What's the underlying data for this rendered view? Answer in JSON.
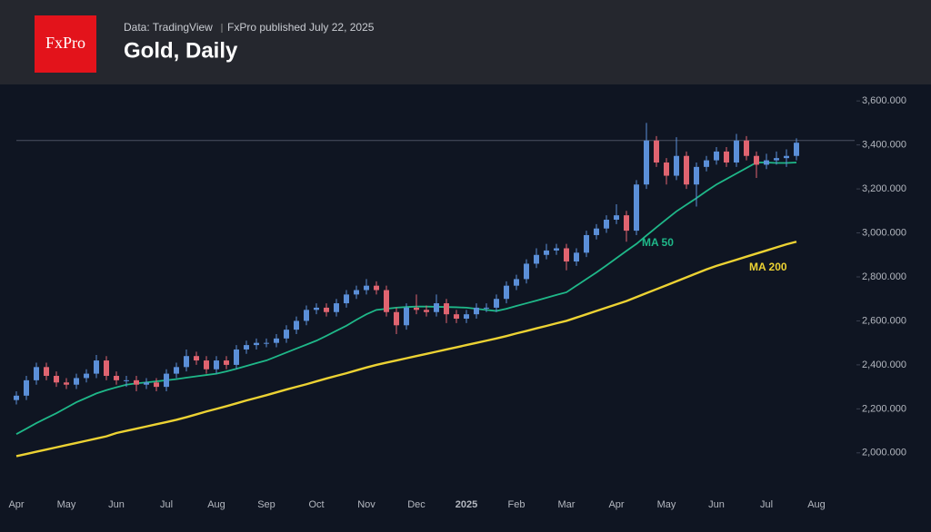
{
  "header": {
    "logo": "FxPro",
    "source": "Data: TradingView",
    "published": "FxPro published July 22, 2025",
    "title": "Gold, Daily"
  },
  "chart_data": {
    "type": "candlestick",
    "categories": [
      "Apr",
      null,
      null,
      null,
      null,
      "May",
      null,
      null,
      null,
      null,
      "Jun",
      null,
      null,
      null,
      null,
      "Jul",
      null,
      null,
      null,
      null,
      "Aug",
      null,
      null,
      null,
      null,
      "Sep",
      null,
      null,
      null,
      null,
      "Oct",
      null,
      null,
      null,
      null,
      "Nov",
      null,
      null,
      null,
      null,
      "Dec",
      null,
      null,
      null,
      null,
      "2025",
      null,
      null,
      null,
      null,
      "Feb",
      null,
      null,
      null,
      null,
      "Mar",
      null,
      null,
      null,
      null,
      "Apr",
      null,
      null,
      null,
      null,
      "May",
      null,
      null,
      null,
      null,
      "Jun",
      null,
      null,
      null,
      null,
      "Jul",
      null,
      null,
      null,
      null,
      "Aug"
    ],
    "open": [
      2240,
      2260,
      2330,
      2390,
      2350,
      2320,
      2310,
      2340,
      2360,
      2420,
      2350,
      2330,
      2330,
      2310,
      2320,
      2300,
      2360,
      2390,
      2440,
      2420,
      2380,
      2420,
      2400,
      2470,
      2490,
      2500,
      2500,
      2520,
      2560,
      2600,
      2650,
      2660,
      2640,
      2680,
      2720,
      2740,
      2760,
      2740,
      2640,
      2580,
      2660,
      2650,
      2640,
      2680,
      2630,
      2610,
      2630,
      2660,
      2660,
      2700,
      2760,
      2790,
      2860,
      2900,
      2920,
      2930,
      2870,
      2910,
      2990,
      3020,
      3060,
      3080,
      3010,
      3220,
      3420,
      3320,
      3260,
      3350,
      3220,
      3300,
      3330,
      3370,
      3320,
      3420,
      3350,
      3310,
      3330,
      3340,
      3350,
      null,
      null
    ],
    "high": [
      2280,
      2350,
      2410,
      2410,
      2370,
      2340,
      2360,
      2380,
      2445,
      2440,
      2370,
      2350,
      2350,
      2340,
      2340,
      2380,
      2410,
      2470,
      2460,
      2440,
      2440,
      2440,
      2490,
      2510,
      2520,
      2520,
      2540,
      2580,
      2620,
      2670,
      2680,
      2680,
      2700,
      2740,
      2760,
      2790,
      2780,
      2760,
      2660,
      2680,
      2720,
      2670,
      2720,
      2700,
      2650,
      2650,
      2680,
      2680,
      2720,
      2780,
      2810,
      2880,
      2930,
      2950,
      2950,
      2950,
      2930,
      3010,
      3040,
      3080,
      3130,
      3100,
      3240,
      3500,
      3440,
      3340,
      3435,
      3370,
      3320,
      3350,
      3390,
      3390,
      3450,
      3440,
      3370,
      3360,
      3370,
      3380,
      3430,
      null,
      null
    ],
    "low": [
      2220,
      2240,
      2310,
      2330,
      2300,
      2290,
      2290,
      2320,
      2340,
      2330,
      2310,
      2300,
      2280,
      2290,
      2280,
      2280,
      2340,
      2370,
      2400,
      2360,
      2360,
      2380,
      2380,
      2450,
      2470,
      2480,
      2480,
      2500,
      2540,
      2580,
      2630,
      2620,
      2620,
      2660,
      2700,
      2720,
      2720,
      2620,
      2540,
      2560,
      2630,
      2620,
      2620,
      2590,
      2590,
      2590,
      2610,
      2640,
      2640,
      2680,
      2740,
      2770,
      2840,
      2880,
      2900,
      2830,
      2850,
      2890,
      2970,
      3000,
      3040,
      2960,
      2990,
      3200,
      3300,
      3220,
      3240,
      3200,
      3120,
      3280,
      3310,
      3300,
      3300,
      3330,
      3250,
      3290,
      3310,
      3300,
      3330,
      null,
      null
    ],
    "close": [
      2260,
      2330,
      2390,
      2350,
      2320,
      2310,
      2340,
      2360,
      2420,
      2350,
      2330,
      2330,
      2310,
      2320,
      2300,
      2360,
      2390,
      2440,
      2420,
      2380,
      2420,
      2400,
      2470,
      2490,
      2500,
      2500,
      2520,
      2560,
      2600,
      2650,
      2660,
      2640,
      2680,
      2720,
      2740,
      2760,
      2740,
      2640,
      2580,
      2660,
      2650,
      2640,
      2680,
      2630,
      2610,
      2630,
      2660,
      2660,
      2700,
      2760,
      2790,
      2860,
      2900,
      2920,
      2930,
      2870,
      2910,
      2990,
      3020,
      3060,
      3080,
      3010,
      3220,
      3420,
      3320,
      3260,
      3350,
      3220,
      3300,
      3330,
      3370,
      3320,
      3420,
      3350,
      3310,
      3330,
      3340,
      3350,
      3410,
      null,
      null
    ],
    "up_color": "#5b8fd8",
    "down_color": "#e06470",
    "lines": [
      {
        "name": "MA 50",
        "color": "#1fb889",
        "values": [
          2085,
          2110,
          2135,
          2158,
          2180,
          2205,
          2230,
          2250,
          2270,
          2285,
          2298,
          2310,
          2316,
          2320,
          2325,
          2330,
          2335,
          2342,
          2348,
          2354,
          2360,
          2370,
          2382,
          2395,
          2408,
          2420,
          2438,
          2456,
          2474,
          2492,
          2510,
          2532,
          2555,
          2578,
          2605,
          2630,
          2650,
          2655,
          2660,
          2663,
          2665,
          2665,
          2664,
          2663,
          2662,
          2660,
          2655,
          2650,
          2645,
          2655,
          2668,
          2680,
          2692,
          2705,
          2718,
          2730,
          2760,
          2790,
          2820,
          2852,
          2885,
          2918,
          2950,
          2988,
          3025,
          3062,
          3098,
          3128,
          3158,
          3190,
          3220,
          3245,
          3270,
          3295,
          3320,
          3320,
          3318,
          3318,
          3320,
          null,
          null
        ]
      },
      {
        "name": "MA 200",
        "color": "#ecd233",
        "values": [
          1985,
          1995,
          2005,
          2015,
          2025,
          2035,
          2045,
          2055,
          2065,
          2075,
          2090,
          2100,
          2110,
          2120,
          2130,
          2140,
          2150,
          2162,
          2175,
          2188,
          2200,
          2212,
          2225,
          2238,
          2250,
          2262,
          2275,
          2288,
          2300,
          2312,
          2325,
          2338,
          2350,
          2362,
          2375,
          2388,
          2400,
          2410,
          2420,
          2430,
          2440,
          2450,
          2460,
          2470,
          2480,
          2490,
          2500,
          2510,
          2520,
          2531,
          2543,
          2554,
          2566,
          2577,
          2589,
          2600,
          2615,
          2630,
          2645,
          2660,
          2675,
          2690,
          2708,
          2726,
          2744,
          2762,
          2780,
          2798,
          2816,
          2834,
          2850,
          2864,
          2878,
          2892,
          2906,
          2920,
          2934,
          2948,
          2960,
          null,
          null
        ]
      }
    ],
    "hline": 3420,
    "ylim": [
      1830,
      3675
    ],
    "yticks": [
      {
        "value": 2000,
        "label": "2,000.000"
      },
      {
        "value": 2200,
        "label": "2,200.000"
      },
      {
        "value": 2400,
        "label": "2,400.000"
      },
      {
        "value": 2600,
        "label": "2,600.000"
      },
      {
        "value": 2800,
        "label": "2,800.000"
      },
      {
        "value": 3000,
        "label": "3,000.000"
      },
      {
        "value": 3200,
        "label": "3,200.000"
      },
      {
        "value": 3400,
        "label": "3,400.000"
      },
      {
        "value": 3600,
        "label": "3,600.000"
      }
    ]
  }
}
